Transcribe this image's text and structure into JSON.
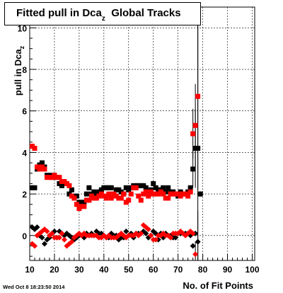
{
  "chart_data": {
    "type": "scatter",
    "title": "Fitted pull in Dca",
    "title_subscript": "z",
    "title_suffix": "Global Tracks",
    "ylabel": "pull in Dca",
    "ylabel_subscript": "z",
    "xlabel": "No. of Fit Points",
    "timestamp": "Wed Oct  8 18:23:50 2014",
    "xlim": [
      10,
      101
    ],
    "ylim": [
      -1.2,
      11
    ],
    "x_ticks": [
      10,
      20,
      30,
      40,
      50,
      60,
      70,
      80,
      90,
      100
    ],
    "y_ticks": [
      0,
      2,
      4,
      6,
      8,
      10
    ],
    "grid": true,
    "series": [
      {
        "color": "#000000",
        "marker": "square",
        "values": [
          [
            11,
            2.3
          ],
          [
            12,
            2.3
          ],
          [
            13,
            3.2
          ],
          [
            14,
            3.4
          ],
          [
            15,
            3.5
          ],
          [
            16,
            3.3
          ],
          [
            17,
            2.9
          ],
          [
            18,
            2.9
          ],
          [
            19,
            2.8
          ],
          [
            20,
            2.9
          ],
          [
            21,
            2.8
          ],
          [
            22,
            2.5
          ],
          [
            23,
            2.4
          ],
          [
            24,
            2.5
          ],
          [
            25,
            2.5
          ],
          [
            26,
            2.0
          ],
          [
            27,
            2.2
          ],
          [
            28,
            1.9
          ],
          [
            29,
            1.9
          ],
          [
            30,
            1.6
          ],
          [
            31,
            1.6
          ],
          [
            32,
            1.6
          ],
          [
            33,
            2.0
          ],
          [
            34,
            2.3
          ],
          [
            35,
            2.0
          ],
          [
            36,
            2.1
          ],
          [
            37,
            2.0
          ],
          [
            38,
            2.1
          ],
          [
            39,
            2.2
          ],
          [
            40,
            2.3
          ],
          [
            41,
            2.3
          ],
          [
            42,
            2.3
          ],
          [
            43,
            2.3
          ],
          [
            44,
            2.0
          ],
          [
            45,
            2.2
          ],
          [
            46,
            2.2
          ],
          [
            47,
            2.1
          ],
          [
            48,
            2.0
          ],
          [
            49,
            2.3
          ],
          [
            50,
            2.2
          ],
          [
            51,
            2.3
          ],
          [
            52,
            2.4
          ],
          [
            53,
            2.4
          ],
          [
            54,
            2.4
          ],
          [
            55,
            2.4
          ],
          [
            56,
            2.4
          ],
          [
            57,
            2.3
          ],
          [
            58,
            2.0
          ],
          [
            59,
            2.2
          ],
          [
            60,
            2.5
          ],
          [
            61,
            2.3
          ],
          [
            62,
            2.2
          ],
          [
            63,
            2.2
          ],
          [
            64,
            2.3
          ],
          [
            65,
            2.1
          ],
          [
            66,
            2.3
          ],
          [
            67,
            2.1
          ],
          [
            68,
            2.1
          ],
          [
            69,
            2.0
          ],
          [
            70,
            1.9
          ],
          [
            71,
            2.1
          ],
          [
            72,
            2.0
          ],
          [
            73,
            2.0
          ],
          [
            74,
            2.1
          ],
          [
            75,
            2.3
          ],
          [
            76,
            3.2
          ],
          [
            77,
            4.2
          ],
          [
            78,
            4.2
          ],
          [
            79,
            2.0
          ]
        ]
      },
      {
        "color": "#ff0000",
        "marker": "square",
        "values": [
          [
            11,
            4.3
          ],
          [
            12,
            4.2
          ],
          [
            13,
            3.3
          ],
          [
            14,
            3.2
          ],
          [
            15,
            3.3
          ],
          [
            16,
            3.2
          ],
          [
            17,
            2.8
          ],
          [
            18,
            2.8
          ],
          [
            19,
            2.8
          ],
          [
            20,
            2.9
          ],
          [
            21,
            2.8
          ],
          [
            22,
            2.8
          ],
          [
            23,
            2.6
          ],
          [
            24,
            2.6
          ],
          [
            25,
            2.5
          ],
          [
            26,
            2.4
          ],
          [
            27,
            1.9
          ],
          [
            28,
            1.8
          ],
          [
            29,
            1.5
          ],
          [
            30,
            1.3
          ],
          [
            31,
            1.4
          ],
          [
            32,
            1.4
          ],
          [
            33,
            1.7
          ],
          [
            34,
            1.7
          ],
          [
            35,
            1.9
          ],
          [
            36,
            1.8
          ],
          [
            37,
            1.8
          ],
          [
            38,
            1.9
          ],
          [
            39,
            2.0
          ],
          [
            40,
            1.9
          ],
          [
            41,
            1.8
          ],
          [
            42,
            2.0
          ],
          [
            43,
            1.8
          ],
          [
            44,
            2.0
          ],
          [
            45,
            1.9
          ],
          [
            46,
            1.8
          ],
          [
            47,
            1.8
          ],
          [
            48,
            2.0
          ],
          [
            49,
            1.6
          ],
          [
            50,
            1.7
          ],
          [
            51,
            2.0
          ],
          [
            52,
            2.3
          ],
          [
            53,
            2.3
          ],
          [
            54,
            1.9
          ],
          [
            55,
            1.7
          ],
          [
            56,
            2.0
          ],
          [
            57,
            2.1
          ],
          [
            58,
            1.9
          ],
          [
            59,
            2.1
          ],
          [
            60,
            2.0
          ],
          [
            61,
            2.0
          ],
          [
            62,
            2.0
          ],
          [
            63,
            2.1
          ],
          [
            64,
            2.0
          ],
          [
            65,
            1.8
          ],
          [
            66,
            1.8
          ],
          [
            67,
            2.0
          ],
          [
            68,
            2.0
          ],
          [
            69,
            2.0
          ],
          [
            70,
            2.0
          ],
          [
            71,
            1.9
          ],
          [
            72,
            2.0
          ],
          [
            73,
            2.0
          ],
          [
            74,
            1.9
          ],
          [
            75,
            2.1
          ],
          [
            76,
            4.9
          ],
          [
            77,
            5.3
          ],
          [
            78,
            6.7
          ]
        ]
      },
      {
        "color": "#000000",
        "marker": "diamond",
        "values": [
          [
            11,
            0.4
          ],
          [
            12,
            0.3
          ],
          [
            13,
            0.4
          ],
          [
            14,
            0.0
          ],
          [
            15,
            -0.1
          ],
          [
            16,
            -0.4
          ],
          [
            17,
            -0.2
          ],
          [
            18,
            -0.1
          ],
          [
            19,
            0.1
          ],
          [
            20,
            0.2
          ],
          [
            21,
            -0.1
          ],
          [
            22,
            0.2
          ],
          [
            23,
            0.1
          ],
          [
            24,
            0.0
          ],
          [
            25,
            0.1
          ],
          [
            26,
            0.0
          ],
          [
            27,
            -0.1
          ],
          [
            28,
            -0.2
          ],
          [
            29,
            -0.1
          ],
          [
            30,
            0.0
          ],
          [
            31,
            0.0
          ],
          [
            32,
            -0.1
          ],
          [
            33,
            0.1
          ],
          [
            34,
            0.0
          ],
          [
            35,
            0.1
          ],
          [
            36,
            0.0
          ],
          [
            37,
            0.2
          ],
          [
            38,
            0.1
          ],
          [
            39,
            0.1
          ],
          [
            40,
            0.0
          ],
          [
            41,
            -0.1
          ],
          [
            42,
            -0.1
          ],
          [
            43,
            0.1
          ],
          [
            44,
            0.0
          ],
          [
            45,
            0.0
          ],
          [
            46,
            -0.2
          ],
          [
            47,
            -0.1
          ],
          [
            48,
            -0.1
          ],
          [
            49,
            0.2
          ],
          [
            50,
            0.0
          ],
          [
            51,
            0.1
          ],
          [
            52,
            -0.1
          ],
          [
            53,
            0.1
          ],
          [
            54,
            0.1
          ],
          [
            55,
            0.1
          ],
          [
            56,
            0.2
          ],
          [
            57,
            0.1
          ],
          [
            58,
            -0.1
          ],
          [
            59,
            0.0
          ],
          [
            60,
            0.2
          ],
          [
            61,
            0.1
          ],
          [
            62,
            -0.2
          ],
          [
            63,
            0.1
          ],
          [
            64,
            -0.1
          ],
          [
            65,
            0.1
          ],
          [
            66,
            0.0
          ],
          [
            67,
            0.0
          ],
          [
            68,
            -0.1
          ],
          [
            69,
            -0.1
          ],
          [
            70,
            0.1
          ],
          [
            71,
            0.1
          ],
          [
            72,
            0.1
          ],
          [
            73,
            0.1
          ],
          [
            74,
            0.1
          ],
          [
            75,
            0.0
          ],
          [
            76,
            -0.5
          ],
          [
            77,
            0.1
          ],
          [
            78,
            -0.3
          ],
          [
            79,
            2.0
          ]
        ]
      },
      {
        "color": "#ff0000",
        "marker": "diamond",
        "values": [
          [
            11,
            -0.4
          ],
          [
            12,
            -0.5
          ],
          [
            13,
            0.0
          ],
          [
            14,
            0.1
          ],
          [
            15,
            0.2
          ],
          [
            16,
            0.3
          ],
          [
            17,
            0.2
          ],
          [
            18,
            0.0
          ],
          [
            19,
            0.1
          ],
          [
            20,
            -0.1
          ],
          [
            21,
            -0.1
          ],
          [
            22,
            -0.1
          ],
          [
            23,
            0.1
          ],
          [
            24,
            -0.2
          ],
          [
            25,
            -0.5
          ],
          [
            26,
            -0.4
          ],
          [
            27,
            -0.3
          ],
          [
            28,
            -0.1
          ],
          [
            29,
            0.0
          ],
          [
            30,
            0.1
          ],
          [
            31,
            0.0
          ],
          [
            32,
            0.1
          ],
          [
            33,
            0.0
          ],
          [
            34,
            0.0
          ],
          [
            35,
            0.0
          ],
          [
            36,
            0.0
          ],
          [
            37,
            0.0
          ],
          [
            38,
            -0.1
          ],
          [
            39,
            -0.1
          ],
          [
            40,
            0.0
          ],
          [
            41,
            -0.1
          ],
          [
            42,
            0.0
          ],
          [
            43,
            -0.1
          ],
          [
            44,
            -0.1
          ],
          [
            45,
            -0.1
          ],
          [
            46,
            0.0
          ],
          [
            47,
            0.1
          ],
          [
            48,
            0.0
          ],
          [
            49,
            -0.1
          ],
          [
            50,
            0.0
          ],
          [
            51,
            0.0
          ],
          [
            52,
            0.0
          ],
          [
            53,
            0.1
          ],
          [
            54,
            0.0
          ],
          [
            55,
            0.1
          ],
          [
            56,
            0.5
          ],
          [
            57,
            0.4
          ],
          [
            58,
            0.3
          ],
          [
            59,
            0.0
          ],
          [
            60,
            -0.2
          ],
          [
            61,
            -0.2
          ],
          [
            62,
            0.0
          ],
          [
            63,
            0.0
          ],
          [
            64,
            0.1
          ],
          [
            65,
            0.0
          ],
          [
            66,
            0.0
          ],
          [
            67,
            -0.1
          ],
          [
            68,
            0.1
          ],
          [
            69,
            0.1
          ],
          [
            70,
            0.1
          ],
          [
            71,
            0.2
          ],
          [
            72,
            0.1
          ],
          [
            73,
            0.0
          ],
          [
            74,
            0.1
          ],
          [
            75,
            0.2
          ],
          [
            76,
            0.1
          ],
          [
            77,
            -0.9
          ]
        ]
      }
    ]
  }
}
